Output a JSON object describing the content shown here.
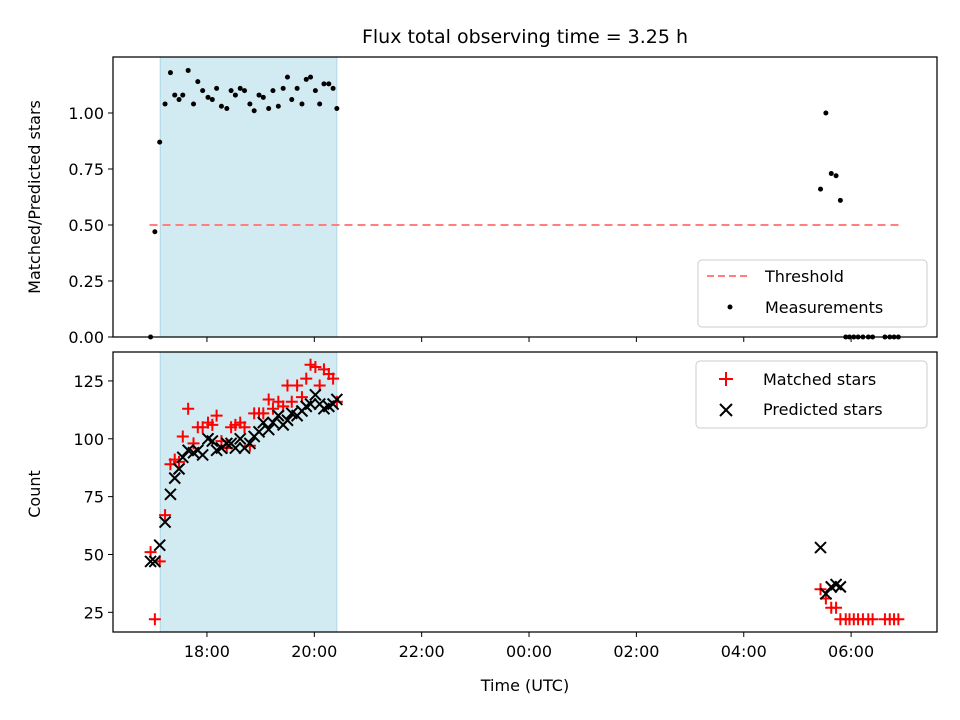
{
  "chart_data": [
    {
      "type": "scatter",
      "title": "Flux total observing time = 3.25 h",
      "ylabel": "Matched/Predicted stars",
      "xlabel": "",
      "ylim": [
        0,
        1.25
      ],
      "yticks": [
        0.0,
        0.25,
        0.5,
        0.75,
        1.0
      ],
      "ytick_labels": [
        "0.00",
        "0.25",
        "0.50",
        "0.75",
        "1.00"
      ],
      "legend_position": "lower-right",
      "shaded_interval_hours": [
        17.13,
        20.42
      ],
      "shade_color": "#add8e6",
      "series": [
        {
          "name": "Threshold",
          "kind": "dashed-line",
          "color": "#ff7f7f",
          "x_hours": [
            16.93,
            30.93
          ],
          "y": [
            0.5,
            0.5
          ]
        },
        {
          "name": "Measurements",
          "kind": "dot",
          "color": "#000000",
          "x_hours": [
            16.95,
            17.03,
            17.12,
            17.22,
            17.32,
            17.4,
            17.48,
            17.55,
            17.65,
            17.75,
            17.83,
            17.92,
            18.02,
            18.1,
            18.18,
            18.27,
            18.37,
            18.45,
            18.53,
            18.62,
            18.7,
            18.8,
            18.88,
            18.97,
            19.05,
            19.15,
            19.23,
            19.33,
            19.42,
            19.5,
            19.58,
            19.68,
            19.77,
            19.85,
            19.93,
            20.02,
            20.1,
            20.18,
            20.27,
            20.35,
            20.42,
            29.43,
            29.53,
            29.63,
            29.72,
            29.8,
            29.9,
            29.97,
            30.05,
            30.13,
            30.22,
            30.32,
            30.4,
            30.63,
            30.72,
            30.8,
            30.88
          ],
          "y": [
            0.0,
            0.47,
            0.87,
            1.04,
            1.18,
            1.08,
            1.06,
            1.08,
            1.19,
            1.04,
            1.14,
            1.1,
            1.07,
            1.06,
            1.11,
            1.03,
            1.02,
            1.1,
            1.08,
            1.11,
            1.1,
            1.04,
            1.01,
            1.08,
            1.07,
            1.02,
            1.1,
            1.03,
            1.11,
            1.16,
            1.06,
            1.11,
            1.04,
            1.15,
            1.16,
            1.1,
            1.04,
            1.13,
            1.13,
            1.11,
            1.02,
            0.66,
            1.0,
            0.73,
            0.72,
            0.61,
            0.0,
            0.0,
            0.0,
            0.0,
            0.0,
            0.0,
            0.0,
            0.0,
            0.0,
            0.0,
            0.0
          ]
        }
      ]
    },
    {
      "type": "scatter",
      "title": "",
      "ylabel": "Count",
      "xlabel": "Time (UTC)",
      "ylim": [
        16.5,
        137.5
      ],
      "yticks": [
        25,
        50,
        75,
        100,
        125
      ],
      "ytick_labels": [
        "25",
        "50",
        "75",
        "100",
        "125"
      ],
      "xticks_hours": [
        18,
        20,
        22,
        24,
        26,
        28,
        30
      ],
      "xtick_labels": [
        "18:00",
        "20:00",
        "22:00",
        "00:00",
        "02:00",
        "04:00",
        "06:00"
      ],
      "xlim_hours": [
        16.25,
        31.6
      ],
      "legend_position": "upper-right",
      "shaded_interval_hours": [
        17.13,
        20.42
      ],
      "series": [
        {
          "name": "Matched stars",
          "marker": "plus",
          "color": "#ff0000",
          "x_hours": [
            16.95,
            17.03,
            17.12,
            17.22,
            17.32,
            17.4,
            17.48,
            17.55,
            17.65,
            17.75,
            17.83,
            17.92,
            18.02,
            18.1,
            18.18,
            18.27,
            18.37,
            18.45,
            18.53,
            18.62,
            18.7,
            18.8,
            18.88,
            18.97,
            19.05,
            19.15,
            19.23,
            19.33,
            19.42,
            19.5,
            19.58,
            19.68,
            19.77,
            19.85,
            19.93,
            20.02,
            20.1,
            20.18,
            20.27,
            20.35,
            20.42,
            29.43,
            29.53,
            29.63,
            29.72,
            29.8,
            29.9,
            29.97,
            30.05,
            30.13,
            30.22,
            30.32,
            30.4,
            30.63,
            30.72,
            30.8,
            30.88
          ],
          "y": [
            51,
            22,
            47,
            67,
            89,
            91,
            90,
            101,
            113,
            98,
            105,
            105,
            107,
            106,
            110,
            99,
            96,
            105,
            106,
            107,
            105,
            97,
            111,
            111,
            111,
            117,
            113,
            116,
            114,
            123,
            116,
            123,
            118,
            126,
            132,
            131,
            123,
            130,
            128,
            126,
            116,
            35,
            31,
            27,
            27,
            22,
            22,
            22,
            22,
            22,
            22,
            22,
            22,
            22,
            22,
            22,
            22
          ]
        },
        {
          "name": "Predicted stars",
          "marker": "x",
          "color": "#000000",
          "x_hours": [
            16.95,
            17.03,
            17.12,
            17.22,
            17.32,
            17.4,
            17.48,
            17.55,
            17.65,
            17.75,
            17.83,
            17.92,
            18.02,
            18.1,
            18.18,
            18.27,
            18.37,
            18.45,
            18.53,
            18.62,
            18.7,
            18.8,
            18.88,
            18.97,
            19.05,
            19.15,
            19.23,
            19.33,
            19.42,
            19.5,
            19.58,
            19.68,
            19.77,
            19.85,
            19.93,
            20.02,
            20.1,
            20.18,
            20.27,
            20.35,
            20.42,
            29.43,
            29.53,
            29.63,
            29.72,
            29.8
          ],
          "y": [
            47,
            47,
            54,
            64,
            76,
            83,
            87,
            92,
            95,
            94,
            95,
            93,
            100,
            99,
            95,
            96,
            98,
            98,
            96,
            100,
            96,
            98,
            101,
            103,
            107,
            104,
            107,
            110,
            106,
            108,
            111,
            110,
            112,
            114,
            115,
            119,
            115,
            113,
            114,
            115,
            117,
            53,
            33,
            36,
            37,
            36
          ]
        }
      ]
    }
  ]
}
